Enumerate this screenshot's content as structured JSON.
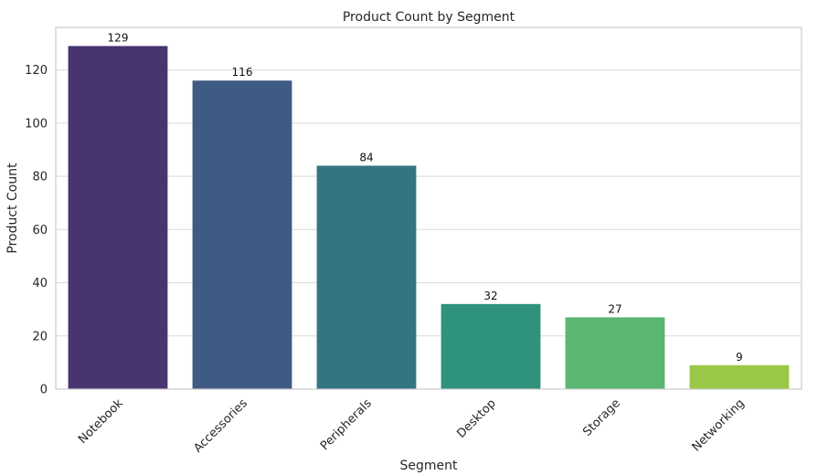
{
  "chart_data": {
    "type": "bar",
    "title": "Product Count by Segment",
    "xlabel": "Segment",
    "ylabel": "Product Count",
    "categories": [
      "Notebook",
      "Accessories",
      "Peripherals",
      "Desktop",
      "Storage",
      "Networking"
    ],
    "values": [
      129,
      116,
      84,
      32,
      27,
      9
    ],
    "data_labels": [
      "129",
      "116",
      "84",
      "32",
      "27",
      "9"
    ],
    "colors": [
      "#48356f",
      "#3f5b83",
      "#337682",
      "#2e927d",
      "#5ab671",
      "#98c845"
    ],
    "ylim": [
      0,
      136
    ],
    "yticks": [
      0,
      20,
      40,
      60,
      80,
      100,
      120
    ],
    "ytick_labels": [
      "0",
      "20",
      "40",
      "60",
      "80",
      "100",
      "120"
    ],
    "grid": true,
    "legend": "none"
  }
}
